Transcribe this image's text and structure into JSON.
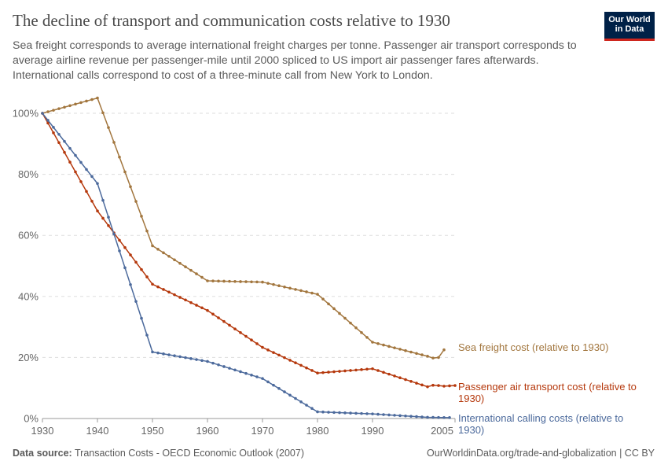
{
  "header": {
    "title": "The decline of transport and communication costs relative to 1930",
    "subtitle": "Sea freight corresponds to average international freight charges per tonne. Passenger air transport corresponds to average airline revenue per passenger-mile until 2000 spliced to US import air passenger fares afterwards. International calls correspond to cost of a three-minute call from New York to London.",
    "logo_line1": "Our World",
    "logo_line2": "in Data",
    "logo_colors": {
      "background": "#002147",
      "accent": "#ce261e"
    }
  },
  "footer": {
    "source_label": "Data source:",
    "source": "Transaction Costs - OECD Economic Outlook (2007)",
    "url": "OurWorldinData.org/trade-and-globalization | CC BY"
  },
  "chart_data": {
    "type": "line",
    "xlim": [
      1930,
      2005
    ],
    "ylim": [
      0,
      100
    ],
    "x_ticks": [
      "1930",
      "1940",
      "1950",
      "1960",
      "1970",
      "1980",
      "1990",
      "2005"
    ],
    "x_tick_values": [
      1930,
      1940,
      1950,
      1960,
      1970,
      1980,
      1990,
      2005
    ],
    "y_ticks": [
      "0%",
      "20%",
      "40%",
      "60%",
      "80%",
      "100%"
    ],
    "y_tick_values": [
      0,
      20,
      40,
      60,
      80,
      100
    ],
    "grid": "horizontal dashed",
    "legend": "right, labels at line ends",
    "series": [
      {
        "name": "Sea freight cost (relative to 1930)",
        "color": "#a2763e",
        "x": [
          1930,
          1940,
          1950,
          1960,
          1970,
          1980,
          1990,
          2000,
          2001,
          2002,
          2003
        ],
        "y": [
          100,
          105,
          56.6,
          45.1,
          44.7,
          40.7,
          25,
          20.4,
          19.8,
          20,
          22.5
        ]
      },
      {
        "name": "Passenger air transport cost (relative to 1930)",
        "color": "#b5380c",
        "x": [
          1930,
          1940,
          1950,
          1960,
          1970,
          1980,
          1990,
          2000,
          2001,
          2002,
          2003,
          2004,
          2005
        ],
        "y": [
          100,
          68,
          44,
          35.4,
          23.3,
          14.9,
          16.3,
          10.4,
          10.9,
          10.8,
          10.6,
          10.7,
          10.8
        ]
      },
      {
        "name": "International calling costs (relative to 1930)",
        "color": "#4c6a9c",
        "x": [
          1930,
          1940,
          1950,
          1960,
          1970,
          1980,
          1990,
          2000,
          2004
        ],
        "y": [
          100,
          77,
          21.8,
          18.7,
          13.1,
          2.2,
          1.5,
          0.4,
          0.3
        ]
      }
    ]
  }
}
